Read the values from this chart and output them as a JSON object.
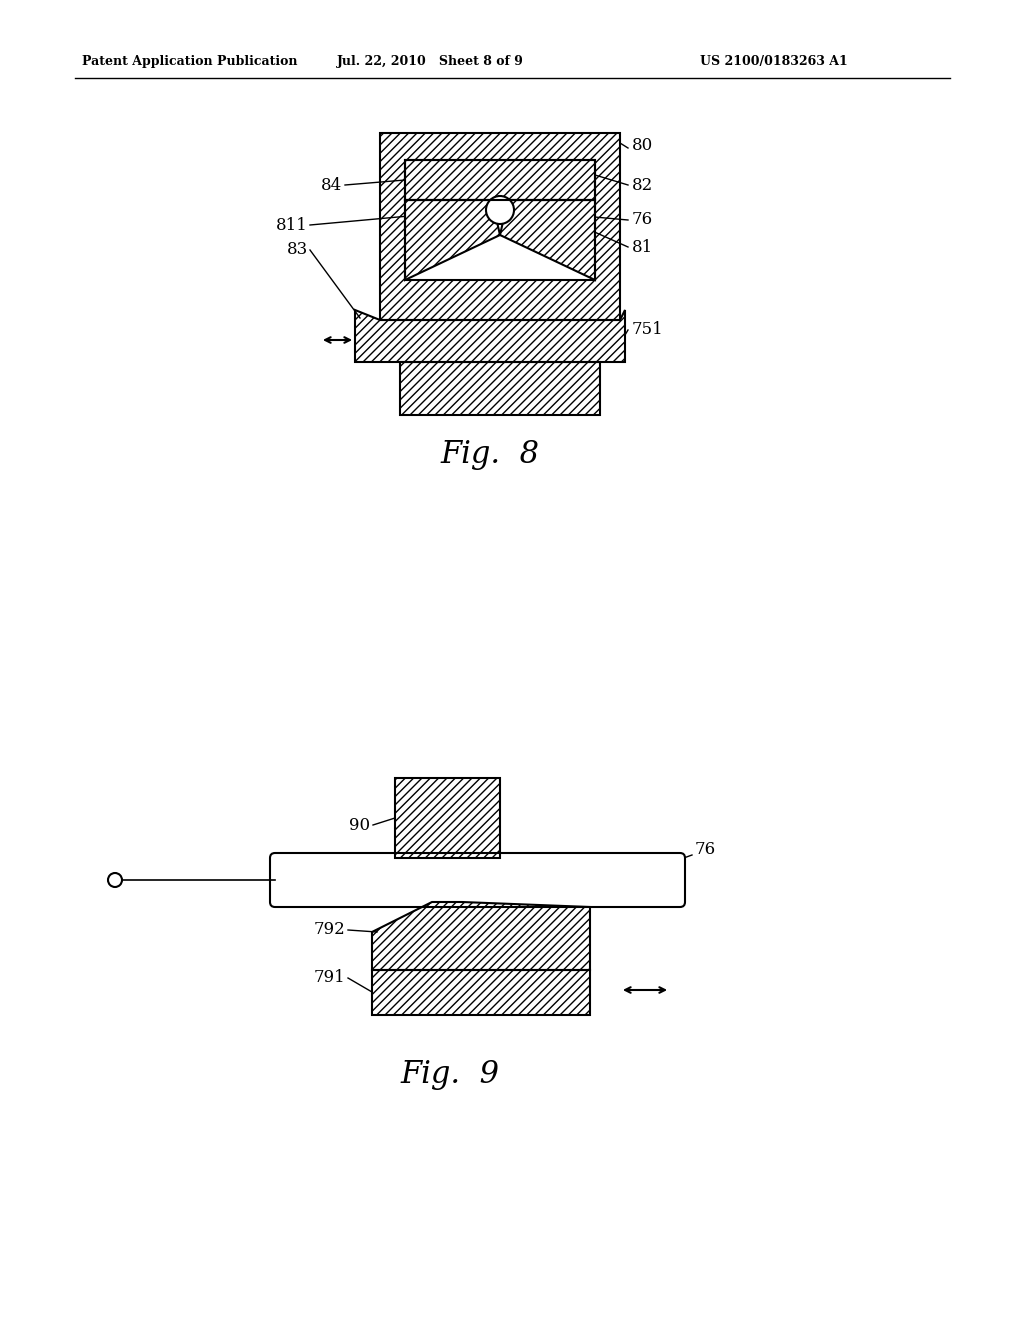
{
  "header_left": "Patent Application Publication",
  "header_mid": "Jul. 22, 2010   Sheet 8 of 9",
  "header_right": "US 2100/0183263 A1",
  "fig8_caption": "Fig.  8",
  "fig9_caption": "Fig.  9",
  "bg_color": "#ffffff",
  "line_color": "#000000"
}
